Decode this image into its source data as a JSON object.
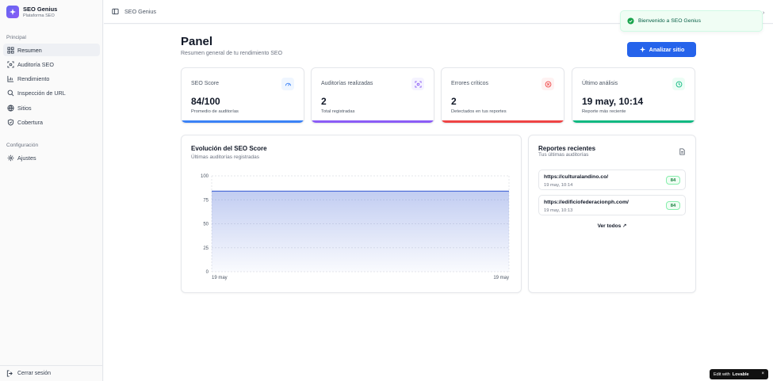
{
  "brand": {
    "name": "SEO Genius",
    "subtitle": "Plataforma SEO"
  },
  "sidebar": {
    "group_principal": "Principal",
    "items": [
      {
        "label": "Resumen",
        "icon": "grid-icon",
        "active": true
      },
      {
        "label": "Auditoría SEO",
        "icon": "scan-icon"
      },
      {
        "label": "Rendimiento",
        "icon": "bar-chart-icon"
      },
      {
        "label": "Inspección de URL",
        "icon": "search-icon"
      },
      {
        "label": "Sitios",
        "icon": "globe-icon"
      },
      {
        "label": "Cobertura",
        "icon": "shield-icon"
      }
    ],
    "group_config": "Configuración",
    "config_items": [
      {
        "label": "Ajustes",
        "icon": "gear-icon"
      }
    ],
    "logout": "Cerrar sesión"
  },
  "header": {
    "breadcrumb": "SEO Genius"
  },
  "toast": {
    "message": "Bienvenido a SEO Genius"
  },
  "page": {
    "title": "Panel",
    "subtitle": "Resumen general de tu rendimiento SEO",
    "analyze_button": "Analizar sitio"
  },
  "stats": [
    {
      "label": "SEO Score",
      "value": "84/100",
      "note": "Promedio de auditorías",
      "color": "#3b82f6",
      "tint": "#eff6ff",
      "icon": "gauge-icon"
    },
    {
      "label": "Auditorías realizadas",
      "value": "2",
      "note": "Total registradas",
      "color": "#8b5cf6",
      "tint": "#f5f3ff",
      "icon": "scan-icon"
    },
    {
      "label": "Errores críticos",
      "value": "2",
      "note": "Detectados en tus reportes",
      "color": "#ef4444",
      "tint": "#fef2f2",
      "icon": "x-circle-icon"
    },
    {
      "label": "Último análisis",
      "value": "19 may, 10:14",
      "note": "Reporte más reciente",
      "color": "#10b981",
      "tint": "#ecfdf5",
      "icon": "clock-icon"
    }
  ],
  "chart_card": {
    "title": "Evolución del SEO Score",
    "subtitle": "Últimas auditorías registradas"
  },
  "chart_data": {
    "type": "area",
    "x": [
      "19 may",
      "19 may"
    ],
    "y": [
      84,
      84
    ],
    "yticks": [
      0,
      25,
      50,
      75,
      100
    ],
    "ylim": [
      0,
      100
    ],
    "grid": true,
    "color": "#4f6fd8"
  },
  "reports": {
    "title": "Reportes recientes",
    "subtitle": "Tus últimas auditorías",
    "items": [
      {
        "url": "https://culturalandino.co/",
        "date": "19 may, 10:14",
        "score": "84"
      },
      {
        "url": "https://edificiofederacionph.com/",
        "date": "19 may, 10:13",
        "score": "84"
      }
    ],
    "view_all": "Ver todos ↗"
  },
  "lovable": {
    "prefix": "Edit with",
    "brand": "Lovable"
  }
}
